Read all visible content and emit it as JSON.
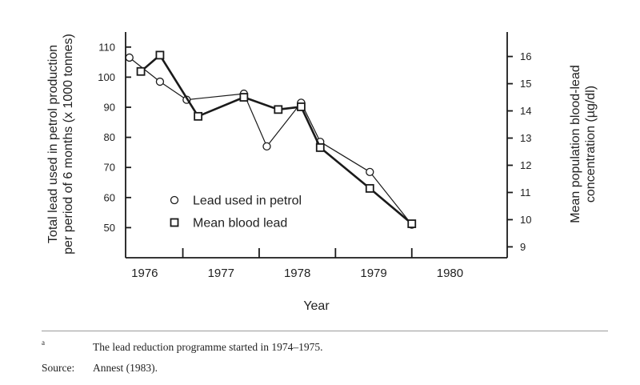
{
  "chart_data": {
    "type": "line",
    "xlabel": "Year",
    "ylabel": "Total lead used in petrol production per period of 6 months (x 1000 tonnes)",
    "ylabel_lines": [
      "Total lead used in petrol production",
      "per period of 6 months (x 1000 tonnes)"
    ],
    "y2label": "Mean population blood-lead concentration (µg/dl)",
    "y2label_lines": [
      "Mean population blood-lead",
      "concentration (µg/dl)"
    ],
    "x_tick_labels": [
      "1976",
      "1977",
      "1978",
      "1979",
      "1980"
    ],
    "xlim": [
      1975.75,
      1980.75
    ],
    "ylim": [
      40,
      115
    ],
    "y_ticks": [
      50,
      60,
      70,
      80,
      90,
      100,
      110
    ],
    "y2lim": [
      8.6,
      16.9
    ],
    "y2_ticks": [
      9,
      10,
      11,
      12,
      13,
      14,
      15,
      16
    ],
    "legend_position": "lower-left inside plot",
    "series": [
      {
        "name": "Lead used in petrol",
        "axis": "left",
        "marker": "circle",
        "x": [
          1975.8,
          1976.2,
          1976.55,
          1977.3,
          1977.6,
          1978.05,
          1978.3,
          1978.95,
          1979.5
        ],
        "values": [
          106.5,
          98.5,
          92.5,
          94.5,
          77,
          91.5,
          78.5,
          68.5,
          51
        ]
      },
      {
        "name": "Mean blood lead",
        "axis": "right",
        "marker": "square",
        "x": [
          1975.95,
          1976.2,
          1976.7,
          1977.3,
          1977.75,
          1978.05,
          1978.3,
          1978.95,
          1979.5
        ],
        "values": [
          15.45,
          16.05,
          13.8,
          14.5,
          14.05,
          14.15,
          12.65,
          11.15,
          9.85
        ]
      }
    ]
  },
  "footnotes": [
    {
      "key": "a",
      "text": "The lead reduction programme started in 1974–1975."
    },
    {
      "key": "Source:",
      "text": "Annest (1983)."
    }
  ],
  "colors": {
    "ink": "#1a1a1a",
    "marker_fill": "#ffffff",
    "divider": "#9a9a9a"
  }
}
